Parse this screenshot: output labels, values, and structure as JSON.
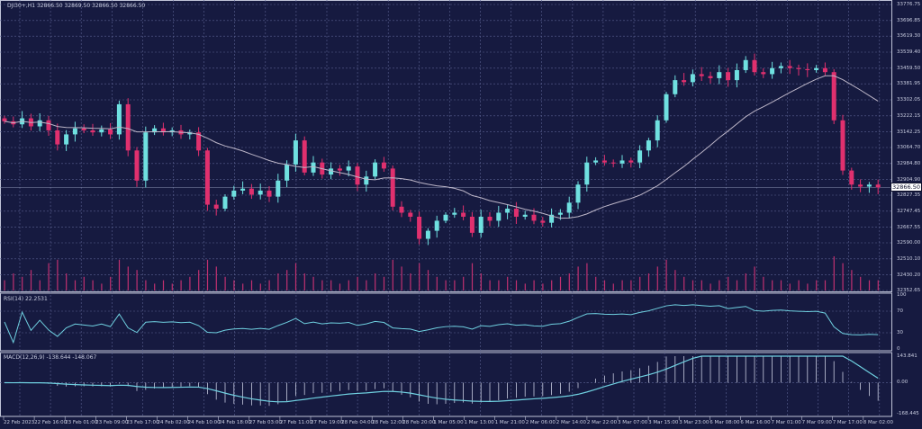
{
  "header": {
    "symbol_line": "DJI30+,H1  32866.50 32869.50 32866.50 32866.50"
  },
  "current_price": "32866.50",
  "colors": {
    "background": "#161a40",
    "bull": "#6fe0e0",
    "bear": "#e0306e",
    "ma": "#bdb6c8",
    "indicator": "#6fd0e0",
    "grid": "#5a6090",
    "volume": "#c03070"
  },
  "chart_data": {
    "type": "candlestick",
    "price_axis": [
      "33776.75",
      "33696.85",
      "33619.30",
      "33539.40",
      "33459.50",
      "33381.95",
      "33302.05",
      "33222.15",
      "33142.25",
      "33064.70",
      "32984.80",
      "32904.90",
      "32827.35",
      "32747.45",
      "32667.55",
      "32590.00",
      "32510.10",
      "32430.20",
      "32352.65"
    ],
    "ylim": [
      32352.65,
      33776.75
    ],
    "time_axis": [
      "22 Feb 2023",
      "22 Feb 16:00",
      "23 Feb 01:00",
      "23 Feb 09:00",
      "23 Feb 17:00",
      "24 Feb 02:00",
      "24 Feb 10:00",
      "24 Feb 18:00",
      "27 Feb 03:00",
      "27 Feb 11:00",
      "27 Feb 19:00",
      "28 Feb 04:00",
      "28 Feb 12:00",
      "28 Feb 20:00",
      "1 Mar 05:00",
      "1 Mar 13:00",
      "1 Mar 21:00",
      "2 Mar 06:00",
      "2 Mar 14:00",
      "2 Mar 22:00",
      "3 Mar 07:00",
      "3 Mar 15:00",
      "3 Mar 23:00",
      "6 Mar 08:00",
      "6 Mar 16:00",
      "7 Mar 01:00",
      "7 Mar 09:00",
      "7 Mar 17:00",
      "8 Mar 02:00"
    ],
    "close": [
      33195,
      33180,
      33210,
      33170,
      33200,
      33150,
      33080,
      33130,
      33160,
      33150,
      33140,
      33155,
      33130,
      33280,
      33050,
      32900,
      33140,
      33160,
      33140,
      33150,
      33130,
      33140,
      33050,
      32780,
      32760,
      32820,
      32850,
      32860,
      32830,
      32850,
      32820,
      32900,
      32980,
      33100,
      32940,
      32990,
      32930,
      32960,
      32950,
      32970,
      32880,
      32920,
      32990,
      32960,
      32770,
      32740,
      32720,
      32610,
      32650,
      32700,
      32730,
      32740,
      32720,
      32640,
      32720,
      32700,
      32740,
      32760,
      32720,
      32730,
      32700,
      32690,
      32730,
      32740,
      32790,
      32880,
      32990,
      33000,
      32990,
      32985,
      33000,
      32990,
      33050,
      33100,
      33200,
      33330,
      33400,
      33390,
      33430,
      33420,
      33410,
      33440,
      33400,
      33450,
      33500,
      33440,
      33430,
      33460,
      33470,
      33460,
      33455,
      33450,
      33460,
      33440,
      33200,
      32950,
      32880,
      32870,
      32880,
      32866
    ],
    "volume": [
      3,
      5,
      4,
      6,
      3,
      8,
      9,
      5,
      3,
      4,
      3,
      2,
      4,
      9,
      7,
      6,
      3,
      2,
      3,
      2,
      3,
      4,
      6,
      9,
      7,
      4,
      3,
      2,
      3,
      2,
      3,
      5,
      6,
      8,
      5,
      4,
      3,
      3,
      2,
      3,
      4,
      3,
      5,
      4,
      9,
      7,
      5,
      8,
      6,
      4,
      3,
      3,
      4,
      8,
      5,
      3,
      3,
      4,
      3,
      2,
      3,
      2,
      3,
      4,
      5,
      7,
      8,
      4,
      3,
      2,
      3,
      3,
      4,
      5,
      7,
      9,
      6,
      4,
      3,
      3,
      2,
      3,
      4,
      3,
      5,
      7,
      4,
      3,
      3,
      2,
      3,
      2,
      3,
      3,
      10,
      8,
      6,
      4,
      3,
      3
    ],
    "ma_period": 20,
    "rsi": {
      "label": "RSI(14) 22.2531",
      "levels": [
        "100",
        "70",
        "30",
        "0"
      ]
    },
    "macd": {
      "label": "MACD(12,26,9) -138.644 -148.067",
      "axis": [
        "143.841",
        "0.00",
        "-168.445"
      ],
      "ylim": [
        -168.445,
        143.841
      ]
    }
  }
}
